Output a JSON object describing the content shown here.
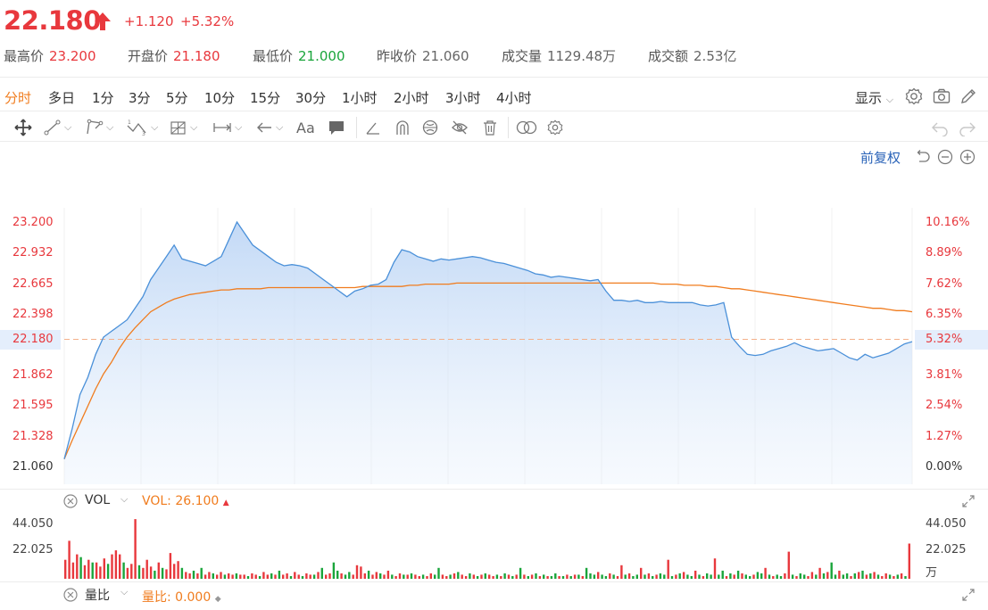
{
  "quote": {
    "price": "22.180",
    "change": "+1.120",
    "change_pct": "+5.32%",
    "stats": [
      {
        "label": "最高价",
        "value": "23.200",
        "color": "red"
      },
      {
        "label": "开盘价",
        "value": "21.180",
        "color": "red"
      },
      {
        "label": "最低价",
        "value": "21.000",
        "color": "green"
      },
      {
        "label": "昨收价",
        "value": "21.060",
        "color": "gray"
      },
      {
        "label": "成交量",
        "value": "1129.48万",
        "color": "gray"
      },
      {
        "label": "成交额",
        "value": "2.53亿",
        "color": "gray"
      }
    ]
  },
  "periods": [
    "分时",
    "多日",
    "1分",
    "3分",
    "5分",
    "10分",
    "15分",
    "30分",
    "1小时",
    "2小时",
    "3小时",
    "4小时"
  ],
  "active_period": "分时",
  "toolbar": {
    "show_label": "显示",
    "text_tool": "Aa",
    "adjust_label": "前复权"
  },
  "price_axis": {
    "left": [
      "23.200",
      "22.932",
      "22.665",
      "22.398",
      "22.180",
      "21.862",
      "21.595",
      "21.328",
      "21.060"
    ],
    "right": [
      "10.16%",
      "8.89%",
      "7.62%",
      "6.35%",
      "5.32%",
      "3.81%",
      "2.54%",
      "1.27%",
      "0.00%"
    ]
  },
  "volume_panel": {
    "name": "VOL",
    "value_text": "VOL: 26.100",
    "axis_left": [
      "44.050",
      "22.025"
    ],
    "axis_right": [
      "44.050",
      "22.025",
      "万"
    ]
  },
  "ratio_panel": {
    "name": "量比",
    "value_text": "量比: 0.000"
  },
  "colors": {
    "up": "#e8383d",
    "down": "#1aa53b",
    "accent": "#f07c1e",
    "price_line": "#4a90d9",
    "avg_line": "#f07c1e"
  },
  "chart_data": {
    "type": "line",
    "series": [
      {
        "values": [
          21.14,
          21.4,
          21.7,
          21.85,
          22.05,
          22.2,
          22.25,
          22.3,
          22.35,
          22.45,
          22.55,
          22.7,
          22.8,
          22.9,
          23.0,
          22.88,
          22.86,
          22.84,
          22.82,
          22.86,
          22.9,
          23.05,
          23.2,
          23.1,
          23.0,
          22.95,
          22.9,
          22.85,
          22.82,
          22.83,
          22.82,
          22.8,
          22.75,
          22.7,
          22.65,
          22.6,
          22.55,
          22.6,
          22.62,
          22.65,
          22.66,
          22.7,
          22.85,
          22.96,
          22.94,
          22.9,
          22.88,
          22.86,
          22.88,
          22.87,
          22.88,
          22.89,
          22.9,
          22.89,
          22.87,
          22.85,
          22.84,
          22.82,
          22.8,
          22.78,
          22.75,
          22.74,
          22.72,
          22.73,
          22.72,
          22.71,
          22.7,
          22.69,
          22.7,
          22.6,
          22.52,
          22.52,
          22.51,
          22.52,
          22.5,
          22.5,
          22.51,
          22.5,
          22.5,
          22.5,
          22.5,
          22.48,
          22.47,
          22.48,
          22.5,
          22.2,
          22.12,
          22.05,
          22.04,
          22.05,
          22.08,
          22.1,
          22.12,
          22.15,
          22.12,
          22.1,
          22.08,
          22.09,
          22.1,
          22.06,
          22.02,
          22.0,
          22.05,
          22.02,
          22.04,
          22.06,
          22.1,
          22.14,
          22.16
        ],
        "x_note": "intraday minutes, one point per sampled interval"
      },
      {
        "values": [
          21.14,
          21.3,
          21.45,
          21.6,
          21.75,
          21.88,
          21.98,
          22.1,
          22.2,
          22.28,
          22.35,
          22.42,
          22.46,
          22.5,
          22.53,
          22.55,
          22.57,
          22.58,
          22.59,
          22.6,
          22.61,
          22.61,
          22.62,
          22.62,
          22.62,
          22.62,
          22.63,
          22.63,
          22.63,
          22.63,
          22.63,
          22.63,
          22.63,
          22.63,
          22.63,
          22.63,
          22.63,
          22.63,
          22.64,
          22.64,
          22.64,
          22.64,
          22.64,
          22.64,
          22.65,
          22.65,
          22.66,
          22.66,
          22.66,
          22.66,
          22.67,
          22.67,
          22.67,
          22.67,
          22.67,
          22.67,
          22.67,
          22.67,
          22.67,
          22.67,
          22.67,
          22.67,
          22.67,
          22.67,
          22.67,
          22.67,
          22.67,
          22.67,
          22.67,
          22.67,
          22.67,
          22.67,
          22.67,
          22.67,
          22.67,
          22.67,
          22.66,
          22.66,
          22.66,
          22.65,
          22.65,
          22.65,
          22.64,
          22.64,
          22.63,
          22.62,
          22.62,
          22.61,
          22.6,
          22.59,
          22.58,
          22.57,
          22.56,
          22.55,
          22.54,
          22.53,
          22.52,
          22.51,
          22.5,
          22.49,
          22.48,
          22.47,
          22.46,
          22.45,
          22.45,
          22.44,
          22.43,
          22.43,
          22.42
        ]
      }
    ],
    "ylim": [
      21.06,
      23.2
    ],
    "baseline": 22.18
  },
  "volume_bars": [
    {
      "v": 14,
      "c": "r"
    },
    {
      "v": 28,
      "c": "r"
    },
    {
      "v": 12,
      "c": "r"
    },
    {
      "v": 18,
      "c": "r"
    },
    {
      "v": 16,
      "c": "g"
    },
    {
      "v": 10,
      "c": "r"
    },
    {
      "v": 14,
      "c": "r"
    },
    {
      "v": 12,
      "c": "g"
    },
    {
      "v": 12,
      "c": "r"
    },
    {
      "v": 9,
      "c": "r"
    },
    {
      "v": 15,
      "c": "r"
    },
    {
      "v": 11,
      "c": "g"
    },
    {
      "v": 18,
      "c": "r"
    },
    {
      "v": 21,
      "c": "r"
    },
    {
      "v": 18,
      "c": "r"
    },
    {
      "v": 12,
      "c": "g"
    },
    {
      "v": 8,
      "c": "r"
    },
    {
      "v": 11,
      "c": "r"
    },
    {
      "v": 44,
      "c": "r"
    },
    {
      "v": 10,
      "c": "g"
    },
    {
      "v": 8,
      "c": "r"
    },
    {
      "v": 14,
      "c": "r"
    },
    {
      "v": 9,
      "c": "r"
    },
    {
      "v": 6,
      "c": "g"
    },
    {
      "v": 12,
      "c": "r"
    },
    {
      "v": 8,
      "c": "g"
    },
    {
      "v": 7,
      "c": "r"
    },
    {
      "v": 19,
      "c": "r"
    },
    {
      "v": 11,
      "c": "r"
    },
    {
      "v": 13,
      "c": "r"
    },
    {
      "v": 8,
      "c": "g"
    },
    {
      "v": 5,
      "c": "r"
    },
    {
      "v": 4,
      "c": "r"
    },
    {
      "v": 6,
      "c": "g"
    },
    {
      "v": 4,
      "c": "r"
    },
    {
      "v": 8,
      "c": "g"
    },
    {
      "v": 3,
      "c": "r"
    },
    {
      "v": 5,
      "c": "r"
    },
    {
      "v": 4,
      "c": "g"
    },
    {
      "v": 3,
      "c": "r"
    },
    {
      "v": 5,
      "c": "r"
    },
    {
      "v": 3,
      "c": "g"
    },
    {
      "v": 4,
      "c": "r"
    },
    {
      "v": 3,
      "c": "r"
    },
    {
      "v": 4,
      "c": "g"
    },
    {
      "v": 3,
      "c": "r"
    },
    {
      "v": 3,
      "c": "r"
    },
    {
      "v": 2,
      "c": "g"
    },
    {
      "v": 4,
      "c": "r"
    },
    {
      "v": 3,
      "c": "r"
    },
    {
      "v": 2,
      "c": "g"
    },
    {
      "v": 5,
      "c": "r"
    },
    {
      "v": 3,
      "c": "r"
    },
    {
      "v": 4,
      "c": "g"
    },
    {
      "v": 3,
      "c": "r"
    },
    {
      "v": 6,
      "c": "g"
    },
    {
      "v": 3,
      "c": "r"
    },
    {
      "v": 4,
      "c": "r"
    },
    {
      "v": 2,
      "c": "g"
    },
    {
      "v": 5,
      "c": "r"
    },
    {
      "v": 3,
      "c": "r"
    },
    {
      "v": 2,
      "c": "g"
    },
    {
      "v": 4,
      "c": "r"
    },
    {
      "v": 3,
      "c": "r"
    },
    {
      "v": 3,
      "c": "g"
    },
    {
      "v": 5,
      "c": "r"
    },
    {
      "v": 8,
      "c": "g"
    },
    {
      "v": 3,
      "c": "r"
    },
    {
      "v": 4,
      "c": "r"
    },
    {
      "v": 12,
      "c": "g"
    },
    {
      "v": 6,
      "c": "g"
    },
    {
      "v": 4,
      "c": "r"
    },
    {
      "v": 3,
      "c": "g"
    },
    {
      "v": 5,
      "c": "g"
    },
    {
      "v": 3,
      "c": "r"
    },
    {
      "v": 10,
      "c": "r"
    },
    {
      "v": 9,
      "c": "r"
    },
    {
      "v": 4,
      "c": "r"
    },
    {
      "v": 6,
      "c": "g"
    },
    {
      "v": 3,
      "c": "r"
    },
    {
      "v": 5,
      "c": "r"
    },
    {
      "v": 4,
      "c": "g"
    },
    {
      "v": 3,
      "c": "r"
    },
    {
      "v": 6,
      "c": "r"
    },
    {
      "v": 3,
      "c": "g"
    },
    {
      "v": 2,
      "c": "r"
    },
    {
      "v": 4,
      "c": "r"
    },
    {
      "v": 3,
      "c": "g"
    },
    {
      "v": 3,
      "c": "r"
    },
    {
      "v": 4,
      "c": "g"
    },
    {
      "v": 3,
      "c": "r"
    },
    {
      "v": 2,
      "c": "r"
    },
    {
      "v": 3,
      "c": "g"
    },
    {
      "v": 2,
      "c": "r"
    },
    {
      "v": 4,
      "c": "r"
    },
    {
      "v": 3,
      "c": "g"
    },
    {
      "v": 8,
      "c": "g"
    },
    {
      "v": 3,
      "c": "r"
    },
    {
      "v": 2,
      "c": "r"
    },
    {
      "v": 3,
      "c": "g"
    },
    {
      "v": 4,
      "c": "r"
    },
    {
      "v": 5,
      "c": "g"
    },
    {
      "v": 3,
      "c": "r"
    },
    {
      "v": 2,
      "c": "r"
    },
    {
      "v": 4,
      "c": "g"
    },
    {
      "v": 3,
      "c": "r"
    },
    {
      "v": 2,
      "c": "g"
    },
    {
      "v": 3,
      "c": "r"
    },
    {
      "v": 4,
      "c": "g"
    },
    {
      "v": 3,
      "c": "r"
    },
    {
      "v": 2,
      "c": "r"
    },
    {
      "v": 3,
      "c": "g"
    },
    {
      "v": 2,
      "c": "r"
    },
    {
      "v": 4,
      "c": "g"
    },
    {
      "v": 3,
      "c": "r"
    },
    {
      "v": 2,
      "c": "g"
    },
    {
      "v": 3,
      "c": "r"
    },
    {
      "v": 8,
      "c": "g"
    },
    {
      "v": 3,
      "c": "r"
    },
    {
      "v": 2,
      "c": "g"
    },
    {
      "v": 3,
      "c": "r"
    },
    {
      "v": 4,
      "c": "g"
    },
    {
      "v": 2,
      "c": "r"
    },
    {
      "v": 3,
      "c": "g"
    },
    {
      "v": 2,
      "c": "r"
    },
    {
      "v": 2,
      "c": "g"
    },
    {
      "v": 4,
      "c": "g"
    },
    {
      "v": 2,
      "c": "r"
    },
    {
      "v": 2,
      "c": "g"
    },
    {
      "v": 3,
      "c": "r"
    },
    {
      "v": 2,
      "c": "g"
    },
    {
      "v": 3,
      "c": "r"
    },
    {
      "v": 3,
      "c": "g"
    },
    {
      "v": 2,
      "c": "r"
    },
    {
      "v": 8,
      "c": "g"
    },
    {
      "v": 4,
      "c": "g"
    },
    {
      "v": 3,
      "c": "g"
    },
    {
      "v": 5,
      "c": "r"
    },
    {
      "v": 3,
      "c": "g"
    },
    {
      "v": 2,
      "c": "g"
    },
    {
      "v": 4,
      "c": "r"
    },
    {
      "v": 3,
      "c": "g"
    },
    {
      "v": 2,
      "c": "r"
    },
    {
      "v": 10,
      "c": "r"
    },
    {
      "v": 3,
      "c": "g"
    },
    {
      "v": 4,
      "c": "r"
    },
    {
      "v": 2,
      "c": "g"
    },
    {
      "v": 3,
      "c": "g"
    },
    {
      "v": 8,
      "c": "r"
    },
    {
      "v": 3,
      "c": "g"
    },
    {
      "v": 4,
      "c": "r"
    },
    {
      "v": 2,
      "c": "g"
    },
    {
      "v": 3,
      "c": "r"
    },
    {
      "v": 4,
      "c": "g"
    },
    {
      "v": 3,
      "c": "g"
    },
    {
      "v": 14,
      "c": "r"
    },
    {
      "v": 2,
      "c": "g"
    },
    {
      "v": 3,
      "c": "r"
    },
    {
      "v": 4,
      "c": "g"
    },
    {
      "v": 5,
      "c": "r"
    },
    {
      "v": 3,
      "c": "g"
    },
    {
      "v": 2,
      "c": "g"
    },
    {
      "v": 6,
      "c": "r"
    },
    {
      "v": 3,
      "c": "g"
    },
    {
      "v": 2,
      "c": "r"
    },
    {
      "v": 4,
      "c": "g"
    },
    {
      "v": 3,
      "c": "g"
    },
    {
      "v": 15,
      "c": "r"
    },
    {
      "v": 3,
      "c": "g"
    },
    {
      "v": 6,
      "c": "g"
    },
    {
      "v": 2,
      "c": "r"
    },
    {
      "v": 4,
      "c": "g"
    },
    {
      "v": 3,
      "c": "r"
    },
    {
      "v": 6,
      "c": "g"
    },
    {
      "v": 4,
      "c": "r"
    },
    {
      "v": 3,
      "c": "g"
    },
    {
      "v": 2,
      "c": "g"
    },
    {
      "v": 3,
      "c": "r"
    },
    {
      "v": 5,
      "c": "g"
    },
    {
      "v": 4,
      "c": "g"
    },
    {
      "v": 8,
      "c": "r"
    },
    {
      "v": 3,
      "c": "g"
    },
    {
      "v": 2,
      "c": "r"
    },
    {
      "v": 3,
      "c": "g"
    },
    {
      "v": 2,
      "c": "g"
    },
    {
      "v": 4,
      "c": "r"
    },
    {
      "v": 20,
      "c": "r"
    },
    {
      "v": 3,
      "c": "g"
    },
    {
      "v": 2,
      "c": "r"
    },
    {
      "v": 4,
      "c": "g"
    },
    {
      "v": 3,
      "c": "g"
    },
    {
      "v": 2,
      "c": "r"
    },
    {
      "v": 5,
      "c": "r"
    },
    {
      "v": 3,
      "c": "g"
    },
    {
      "v": 8,
      "c": "r"
    },
    {
      "v": 4,
      "c": "g"
    },
    {
      "v": 5,
      "c": "r"
    },
    {
      "v": 12,
      "c": "g"
    },
    {
      "v": 3,
      "c": "g"
    },
    {
      "v": 6,
      "c": "r"
    },
    {
      "v": 3,
      "c": "g"
    },
    {
      "v": 4,
      "c": "g"
    },
    {
      "v": 2,
      "c": "r"
    },
    {
      "v": 4,
      "c": "g"
    },
    {
      "v": 5,
      "c": "r"
    },
    {
      "v": 6,
      "c": "g"
    },
    {
      "v": 3,
      "c": "r"
    },
    {
      "v": 4,
      "c": "g"
    },
    {
      "v": 5,
      "c": "r"
    },
    {
      "v": 3,
      "c": "g"
    },
    {
      "v": 2,
      "c": "r"
    },
    {
      "v": 4,
      "c": "r"
    },
    {
      "v": 3,
      "c": "g"
    },
    {
      "v": 2,
      "c": "r"
    },
    {
      "v": 3,
      "c": "g"
    },
    {
      "v": 4,
      "c": "r"
    },
    {
      "v": 2,
      "c": "g"
    },
    {
      "v": 26,
      "c": "r"
    }
  ]
}
